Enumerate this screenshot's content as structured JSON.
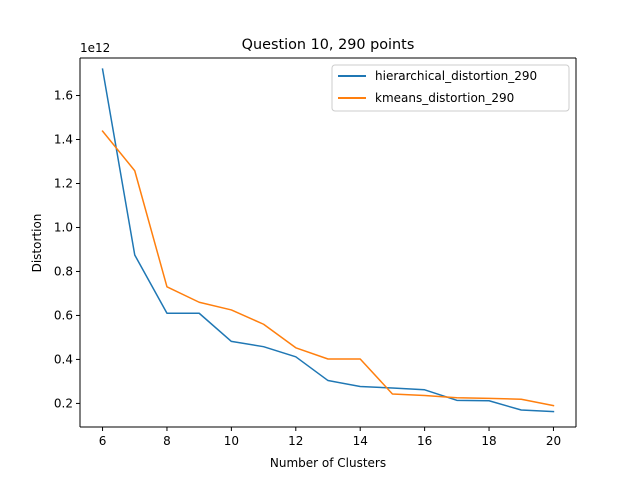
{
  "chart_data": {
    "type": "line",
    "title": "Question 10, 290 points",
    "xlabel": "Number of Clusters",
    "ylabel": "Distortion",
    "y_offset_label": "1e12",
    "xlim": [
      5.3,
      20.7
    ],
    "ylim": [
      0.0928,
      1.7706
    ],
    "xticks": [
      6,
      8,
      10,
      12,
      14,
      16,
      18,
      20
    ],
    "xtick_labels": [
      "6",
      "8",
      "10",
      "12",
      "14",
      "16",
      "18",
      "20"
    ],
    "yticks": [
      0.2,
      0.4,
      0.6,
      0.8,
      1.0,
      1.2,
      1.4,
      1.6
    ],
    "ytick_labels": [
      "0.2",
      "0.4",
      "0.6",
      "0.8",
      "1.0",
      "1.2",
      "1.4",
      "1.6"
    ],
    "grid": false,
    "legend_position": "top-right",
    "x": [
      6,
      7,
      8,
      9,
      10,
      11,
      12,
      13,
      14,
      15,
      16,
      17,
      18,
      19,
      20
    ],
    "series": [
      {
        "name": "hierarchical_distortion_290",
        "color": "#1f77b4",
        "values": [
          1.72,
          0.875,
          0.61,
          0.61,
          0.482,
          0.458,
          0.412,
          0.304,
          0.277,
          0.27,
          0.262,
          0.214,
          0.212,
          0.17,
          0.163
        ]
      },
      {
        "name": "kmeans_distortion_290",
        "color": "#ff7f0e",
        "values": [
          1.438,
          1.258,
          0.73,
          0.66,
          0.625,
          0.56,
          0.453,
          0.402,
          0.402,
          0.243,
          0.236,
          0.226,
          0.223,
          0.219,
          0.19
        ]
      }
    ]
  }
}
